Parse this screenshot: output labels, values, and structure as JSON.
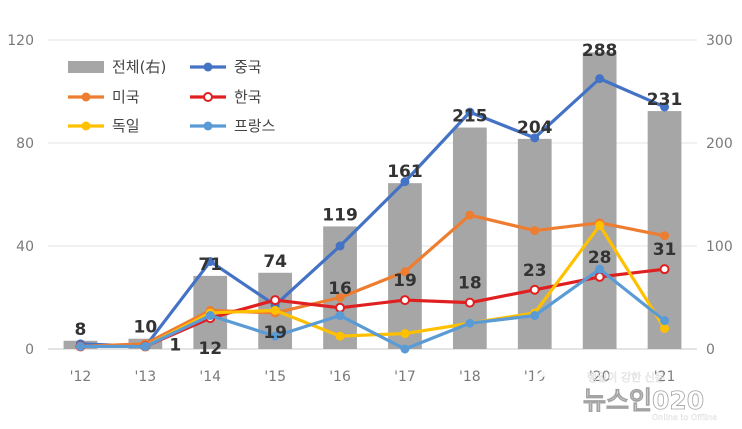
{
  "chart_data": {
    "type": "bar+line",
    "categories": [
      "'12",
      "'13",
      "'14",
      "'15",
      "'16",
      "'17",
      "'18",
      "'19",
      "'20",
      "'21"
    ],
    "left_axis": {
      "ylim": [
        0,
        120
      ],
      "ticks": [
        "0",
        "40",
        "80",
        "120"
      ]
    },
    "right_axis": {
      "ylim": [
        0,
        300
      ],
      "ticks": [
        "0",
        "100",
        "200",
        "300"
      ]
    },
    "bars": {
      "name": "전체(右)",
      "axis": "right",
      "color": "#a6a6a6",
      "values": [
        8,
        10,
        71,
        74,
        119,
        161,
        215,
        204,
        288,
        231
      ]
    },
    "series": [
      {
        "name": "중국",
        "color": "#4472c4",
        "marker": "filled",
        "values": [
          2,
          1,
          34,
          17,
          40,
          65,
          92,
          82,
          105,
          94
        ]
      },
      {
        "name": "미국",
        "color": "#ed7d31",
        "marker": "filled",
        "values": [
          1,
          2,
          15,
          14,
          20,
          30,
          52,
          46,
          49,
          44
        ]
      },
      {
        "name": "한국",
        "color": "#e02020",
        "marker": "hollow",
        "values": [
          1,
          1,
          12,
          19,
          16,
          19,
          18,
          23,
          28,
          31
        ]
      },
      {
        "name": "독일",
        "color": "#ffc000",
        "marker": "filled",
        "values": [
          1,
          1,
          14,
          15,
          5,
          6,
          10,
          14,
          48,
          8
        ]
      },
      {
        "name": "프랑스",
        "color": "#5b9bd5",
        "marker": "filled",
        "values": [
          1,
          1,
          13,
          5,
          13,
          0,
          10,
          13,
          31,
          11
        ]
      }
    ],
    "data_labels": {
      "bar_top": [
        {
          "index": 0,
          "text": "8"
        },
        {
          "index": 1,
          "text": "10"
        },
        {
          "index": 2,
          "text": "71"
        },
        {
          "index": 3,
          "text": "74"
        },
        {
          "index": 4,
          "text": "119"
        },
        {
          "index": 5,
          "text": "161"
        },
        {
          "index": 6,
          "text": "215"
        },
        {
          "index": 7,
          "text": "204"
        },
        {
          "index": 8,
          "text": "288"
        },
        {
          "index": 9,
          "text": "231"
        }
      ],
      "korea": [
        {
          "index": 1,
          "text": "1"
        },
        {
          "index": 2,
          "text": "12"
        },
        {
          "index": 3,
          "text": "19"
        },
        {
          "index": 4,
          "text": "16"
        },
        {
          "index": 5,
          "text": "19"
        },
        {
          "index": 6,
          "text": "18"
        },
        {
          "index": 7,
          "text": "23"
        },
        {
          "index": 8,
          "text": "28"
        },
        {
          "index": 9,
          "text": "31"
        }
      ]
    },
    "legend_position": "top-left",
    "grid": true
  },
  "watermark": {
    "text": "뉴스인020",
    "tagline": "행일이 강한 신문",
    "sub": "Online to Offline"
  }
}
